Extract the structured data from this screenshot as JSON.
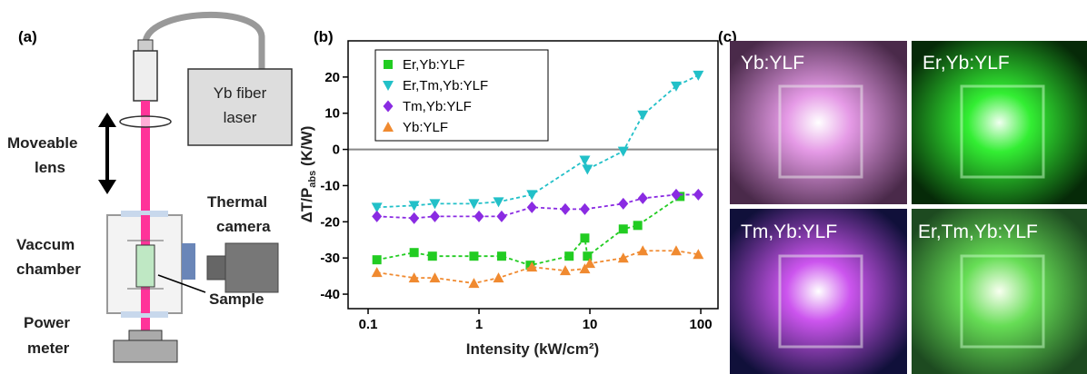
{
  "panel_a": {
    "label": "(a)",
    "laser": [
      "Yb fiber",
      "laser"
    ],
    "lens": [
      "Moveable",
      "lens"
    ],
    "chamber": [
      "Vaccum",
      "chamber"
    ],
    "camera": [
      "Thermal",
      "camera"
    ],
    "sample": "Sample",
    "meter": [
      "Power",
      "meter"
    ]
  },
  "chart_data": {
    "type": "scatter",
    "panel_label": "(b)",
    "xlabel": "Intensity (kW/cm²)",
    "ylabel": {
      "main": "ΔT/P",
      "sub": "abs",
      "unit": " (K/W)"
    },
    "xlog": true,
    "xlim": [
      0.066,
      143
    ],
    "ylim": [
      -44,
      30
    ],
    "xticks": [
      0.1,
      1,
      10,
      100
    ],
    "yticks": [
      -40,
      -30,
      -20,
      -10,
      0,
      10,
      20
    ],
    "reference_line": 0,
    "legend": "upper left",
    "series": [
      {
        "name": "Er,Yb:YLF",
        "color": "#22cc22",
        "marker": "square",
        "x": [
          0.12,
          0.26,
          0.38,
          0.9,
          1.6,
          2.9,
          6.5,
          9,
          9.5,
          20,
          27,
          65
        ],
        "values": [
          -30.5,
          -28.5,
          -29.5,
          -29.5,
          -29.5,
          -32,
          -29.5,
          -24.5,
          -29.5,
          -22,
          -21,
          -13
        ]
      },
      {
        "name": "Er,Tm,Yb:YLF",
        "color": "#22c0c8",
        "marker": "triangle-down",
        "x": [
          0.12,
          0.26,
          0.4,
          0.9,
          1.5,
          3,
          9,
          9.5,
          20,
          30,
          60,
          95
        ],
        "values": [
          -16,
          -15.5,
          -15,
          -15,
          -14.5,
          -12.5,
          -3,
          -5.5,
          -0.5,
          9.5,
          17.5,
          20.5
        ]
      },
      {
        "name": "Tm,Yb:YLF",
        "color": "#8a2be2",
        "marker": "diamond",
        "x": [
          0.12,
          0.26,
          0.4,
          1,
          1.6,
          3,
          6,
          9,
          20,
          30,
          60,
          95
        ],
        "values": [
          -18.5,
          -19,
          -18.5,
          -18.5,
          -18.5,
          -16,
          -16.5,
          -16.5,
          -15,
          -13.5,
          -12.5,
          -12.5
        ]
      },
      {
        "name": "Yb:YLF",
        "color": "#f08a30",
        "marker": "triangle-up",
        "x": [
          0.12,
          0.26,
          0.4,
          0.9,
          1.5,
          3,
          6,
          9,
          10,
          20,
          30,
          60,
          95
        ],
        "values": [
          -34,
          -35.5,
          -35.5,
          -37,
          -35.5,
          -32.5,
          -33.5,
          -33,
          -31.5,
          -30,
          -28,
          -28,
          -29
        ]
      }
    ]
  },
  "panel_c": {
    "label": "(c)",
    "photos": [
      "Yb:YLF",
      "Er,Yb:YLF",
      "Tm,Yb:YLF",
      "Er,Tm,Yb:YLF"
    ]
  }
}
